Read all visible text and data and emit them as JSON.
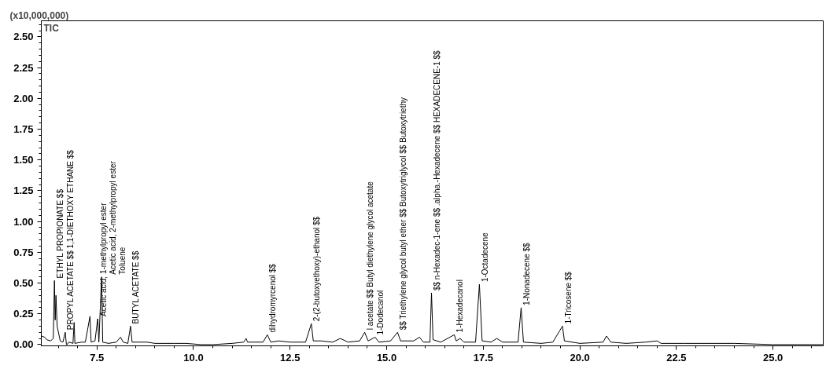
{
  "chart_data": {
    "type": "line",
    "ylabel": "(x10,000,000)",
    "xlim": [
      6.06,
      26.3
    ],
    "ylim": [
      -0.01,
      2.63
    ],
    "xticks": [
      {
        "value": 7.5,
        "label": "7.5"
      },
      {
        "value": 10,
        "label": "10.0"
      },
      {
        "value": 12.5,
        "label": "12.5"
      },
      {
        "value": 15,
        "label": "15.0"
      },
      {
        "value": 17.5,
        "label": "17.5"
      },
      {
        "value": 20,
        "label": "20.0"
      },
      {
        "value": 22.5,
        "label": "22.5"
      },
      {
        "value": 25,
        "label": "25.0"
      }
    ],
    "yticks": [
      {
        "value": 0,
        "label": "0.00"
      },
      {
        "value": 0.25,
        "label": "0.25"
      },
      {
        "value": 0.5,
        "label": "0.50"
      },
      {
        "value": 0.75,
        "label": "0.75"
      },
      {
        "value": 1,
        "label": "1.00"
      },
      {
        "value": 1.25,
        "label": "1.25"
      },
      {
        "value": 1.5,
        "label": "1.50"
      },
      {
        "value": 1.75,
        "label": "1.75"
      },
      {
        "value": 2,
        "label": "2.00"
      },
      {
        "value": 2.25,
        "label": "2.25"
      },
      {
        "value": 2.5,
        "label": "2.50"
      }
    ],
    "grid": false,
    "marker": "none",
    "line_style": "solid",
    "series": [
      {
        "color": "#000000",
        "x": [
          6.06,
          6.15,
          6.2,
          6.3,
          6.37,
          6.4,
          6.42,
          6.44,
          6.47,
          6.55,
          6.62,
          6.68,
          6.71,
          6.73,
          6.77,
          6.88,
          6.91,
          6.93,
          7.1,
          7.2,
          7.32,
          7.35,
          7.45,
          7.52,
          7.55,
          7.62,
          7.65,
          7.8,
          8.0,
          8.11,
          8.18,
          8.3,
          8.37,
          8.41,
          8.8,
          9.0,
          9.5,
          9.8,
          10.2,
          10.5,
          11.0,
          11.3,
          11.36,
          11.4,
          11.8,
          11.91,
          12.0,
          12.2,
          12.5,
          12.9,
          13.05,
          13.1,
          13.3,
          13.6,
          13.8,
          14.0,
          14.3,
          14.43,
          14.52,
          14.7,
          14.8,
          15.1,
          15.28,
          15.36,
          15.7,
          15.85,
          15.95,
          16.12,
          16.16,
          16.2,
          16.4,
          16.75,
          16.8,
          16.9,
          17.0,
          17.3,
          17.4,
          17.47,
          17.7,
          17.85,
          18.0,
          18.4,
          18.48,
          18.54,
          19.0,
          19.3,
          19.55,
          19.6,
          20.0,
          20.6,
          20.69,
          20.8,
          21.2,
          21.7,
          22.0,
          22.1,
          22.7,
          24.0,
          25.0,
          26.3
        ],
        "values": [
          0.07,
          0.06,
          0.04,
          0.03,
          0.05,
          0.52,
          0.2,
          0.4,
          0.15,
          0.03,
          0.02,
          0.1,
          null,
          null,
          0.02,
          0.01,
          0.18,
          0.01,
          0.02,
          0.02,
          0.23,
          0.02,
          0.03,
          0.21,
          0.02,
          0.55,
          0.02,
          0.01,
          0.02,
          0.06,
          0.02,
          0.01,
          0.15,
          0.02,
          0.02,
          0.01,
          0.01,
          0.01,
          0.0,
          0.0,
          0.01,
          0.02,
          0.05,
          0.02,
          0.02,
          0.08,
          0.02,
          0.03,
          0.02,
          0.02,
          0.17,
          0.03,
          0.03,
          0.02,
          0.05,
          0.02,
          0.03,
          0.1,
          0.03,
          0.06,
          0.02,
          0.03,
          0.1,
          0.03,
          0.03,
          0.06,
          0.02,
          0.02,
          0.42,
          0.04,
          0.02,
          0.08,
          0.03,
          0.05,
          0.02,
          0.02,
          0.49,
          0.03,
          0.02,
          0.05,
          0.02,
          0.02,
          0.3,
          0.02,
          0.01,
          0.02,
          0.15,
          0.03,
          0.01,
          0.02,
          0.07,
          0.02,
          0.01,
          0.02,
          0.03,
          0.01,
          0.01,
          0.01,
          0.0,
          0.0
        ]
      }
    ],
    "annotations": [
      "TIC",
      {
        "text": "ETHYL PROPIONATE $$",
        "x": 6.4,
        "y": 0.52
      },
      {
        "text": "PROPYL ACETATE $$ 1,1-DIETHOXY ETHANE $$",
        "x": 6.68,
        "y": 0.1
      },
      {
        "text": "Acetic acid, 1-methylpropyl ester",
        "x": 7.52,
        "y": 0.21
      },
      {
        "text": "Acetic acid, 2-methylpropyl ester",
        "x": 7.62,
        "y": 0.55
      },
      {
        "text": "Toluene",
        "x": 7.62,
        "y": 0.55
      },
      {
        "text": "BUTYL ACETATE $$",
        "x": 8.37,
        "y": 0.15
      },
      {
        "text": "dihydromyrcenol $$",
        "x": 11.91,
        "y": 0.08
      },
      {
        "text": "2-(2-butoxyethoxy)-ethanol $$",
        "x": 13.05,
        "y": 0.17
      },
      {
        "text": "l acetate $$ Butyl diethylene glycol acetate",
        "x": 14.43,
        "y": 0.1
      },
      {
        "text": "1-Dodecanol",
        "x": 14.7,
        "y": 0.06
      },
      {
        "text": "$$ Triethylene glycol butyl ether $$ Butoxytriglycol $$ Butoxytriethy",
        "x": 15.28,
        "y": 0.1
      },
      {
        "text": "$$ n-Hexadec-1-ene $$ .alpha.-Hexadecene $$ HEXADECENE-1 $$",
        "x": 16.16,
        "y": 0.42
      },
      {
        "text": "1-Hexadecanol",
        "x": 16.75,
        "y": 0.08
      },
      {
        "text": "1-Octadecene",
        "x": 17.4,
        "y": 0.49
      },
      {
        "text": "1-Nonadecene $$",
        "x": 18.48,
        "y": 0.3
      },
      {
        "text": "1-Tricosene $$",
        "x": 19.55,
        "y": 0.15
      }
    ]
  }
}
